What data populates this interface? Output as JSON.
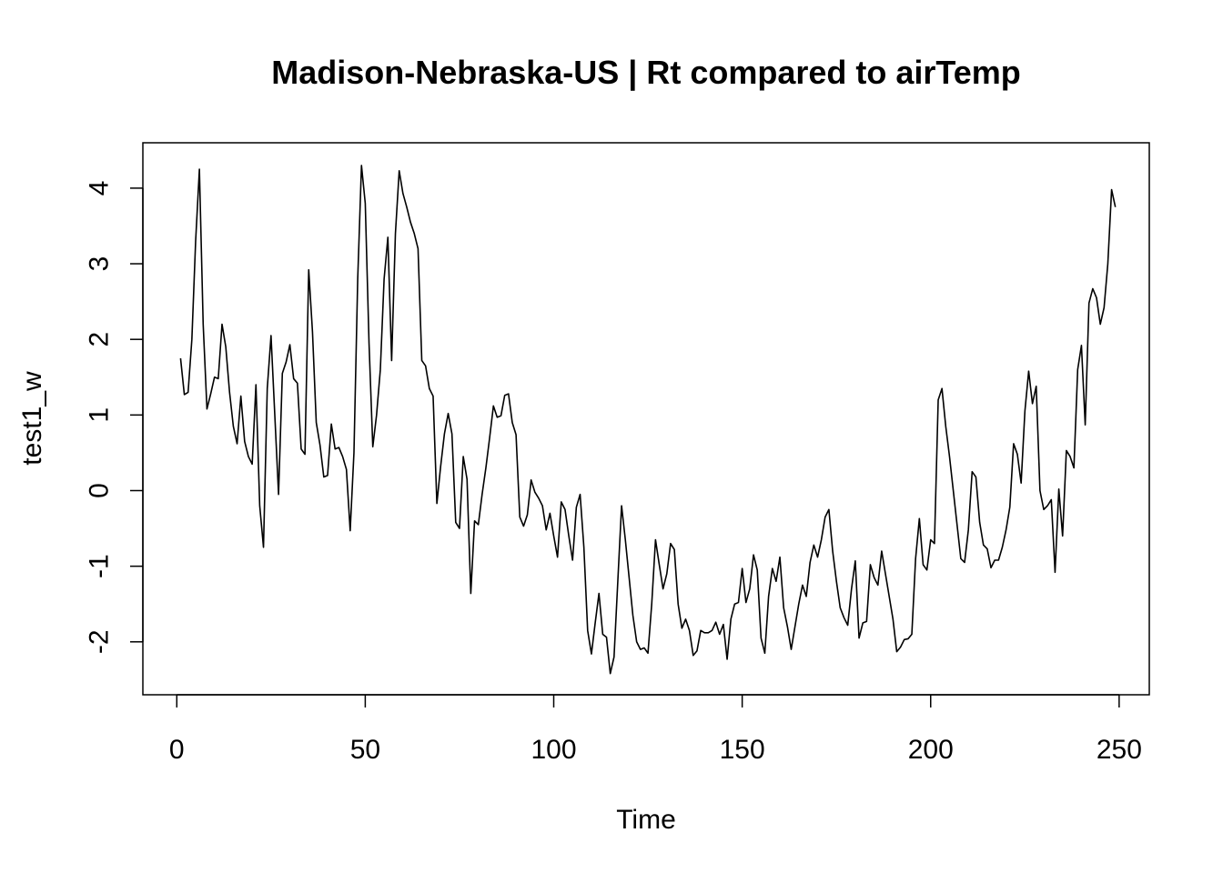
{
  "chart_data": {
    "type": "line",
    "title": "Madison-Nebraska-US | Rt compared to airTemp",
    "xlabel": "Time",
    "ylabel": "test1_w",
    "xlim": [
      -9,
      258
    ],
    "ylim": [
      -2.7,
      4.6
    ],
    "xticks": [
      0,
      50,
      100,
      150,
      200,
      250
    ],
    "yticks": [
      -2,
      -1,
      0,
      1,
      2,
      3,
      4
    ],
    "grid": false,
    "legend": "none",
    "line_color": "#000000",
    "series": [
      {
        "x_start": 1,
        "values": [
          1.75,
          1.27,
          1.3,
          2.0,
          3.3,
          4.25,
          2.2,
          1.08,
          1.28,
          1.5,
          1.48,
          2.2,
          1.9,
          1.3,
          0.85,
          0.62,
          1.25,
          0.65,
          0.45,
          0.35,
          1.4,
          -0.2,
          -0.75,
          1.35,
          2.05,
          1.0,
          -0.05,
          1.55,
          1.7,
          1.93,
          1.48,
          1.42,
          0.55,
          0.48,
          2.92,
          2.1,
          0.9,
          0.6,
          0.18,
          0.2,
          0.88,
          0.55,
          0.57,
          0.45,
          0.28,
          -0.53,
          0.5,
          2.8,
          4.3,
          3.8,
          1.95,
          0.58,
          1.0,
          1.6,
          2.8,
          3.35,
          1.72,
          3.4,
          4.23,
          3.93,
          3.75,
          3.55,
          3.4,
          3.2,
          1.72,
          1.65,
          1.35,
          1.25,
          -0.17,
          0.32,
          0.75,
          1.02,
          0.75,
          -0.42,
          -0.5,
          0.45,
          0.15,
          -1.36,
          -0.4,
          -0.45,
          -0.05,
          0.3,
          0.7,
          1.12,
          0.97,
          0.99,
          1.26,
          1.28,
          0.9,
          0.74,
          -0.35,
          -0.47,
          -0.32,
          0.14,
          -0.02,
          -0.1,
          -0.2,
          -0.52,
          -0.3,
          -0.6,
          -0.88,
          -0.15,
          -0.25,
          -0.6,
          -0.92,
          -0.22,
          -0.05,
          -0.75,
          -1.85,
          -2.16,
          -1.75,
          -1.36,
          -1.9,
          -1.94,
          -2.42,
          -2.2,
          -1.2,
          -0.2,
          -0.65,
          -1.15,
          -1.65,
          -2.0,
          -2.1,
          -2.08,
          -2.15,
          -1.5,
          -0.65,
          -0.98,
          -1.3,
          -1.1,
          -0.7,
          -0.78,
          -1.5,
          -1.82,
          -1.7,
          -1.85,
          -2.18,
          -2.12,
          -1.85,
          -1.88,
          -1.88,
          -1.85,
          -1.74,
          -1.9,
          -1.77,
          -2.23,
          -1.7,
          -1.5,
          -1.48,
          -1.03,
          -1.48,
          -1.3,
          -0.85,
          -1.05,
          -1.95,
          -2.15,
          -1.4,
          -1.03,
          -1.2,
          -0.88,
          -1.55,
          -1.8,
          -2.1,
          -1.8,
          -1.5,
          -1.25,
          -1.4,
          -0.95,
          -0.72,
          -0.88,
          -0.65,
          -0.35,
          -0.25,
          -0.8,
          -1.2,
          -1.55,
          -1.68,
          -1.78,
          -1.3,
          -0.93,
          -1.95,
          -1.75,
          -1.73,
          -0.98,
          -1.15,
          -1.25,
          -0.8,
          -1.1,
          -1.4,
          -1.7,
          -2.13,
          -2.07,
          -1.97,
          -1.96,
          -1.9,
          -0.9,
          -0.37,
          -0.98,
          -1.05,
          -0.65,
          -0.7,
          1.2,
          1.35,
          0.85,
          0.45,
          0.0,
          -0.45,
          -0.9,
          -0.95,
          -0.52,
          0.25,
          0.18,
          -0.42,
          -0.72,
          -0.77,
          -1.02,
          -0.92,
          -0.92,
          -0.75,
          -0.52,
          -0.22,
          0.62,
          0.48,
          0.1,
          1.05,
          1.58,
          1.15,
          1.38,
          0.0,
          -0.25,
          -0.2,
          -0.12,
          -1.08,
          0.02,
          -0.6,
          0.53,
          0.45,
          0.3,
          1.6,
          1.92,
          0.87,
          2.48,
          2.67,
          2.55,
          2.2,
          2.42,
          3.0,
          3.98,
          3.75
        ]
      }
    ]
  }
}
